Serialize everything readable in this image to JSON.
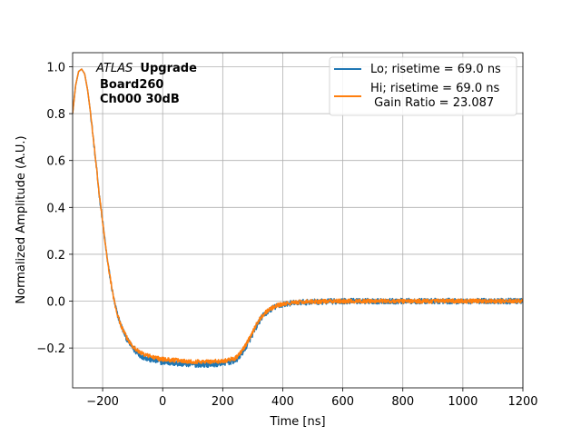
{
  "chart_data": {
    "type": "line",
    "xlabel": "Time [ns]",
    "ylabel": "Normalized Amplitude (A.U.)",
    "xlim": [
      -300,
      1200
    ],
    "ylim": [
      -0.37,
      1.06
    ],
    "x_ticks": [
      -200,
      0,
      200,
      400,
      600,
      800,
      1000,
      1200
    ],
    "x_tick_labels": [
      "−200",
      "0",
      "200",
      "400",
      "600",
      "800",
      "1000",
      "1200"
    ],
    "y_ticks": [
      -0.2,
      0.0,
      0.2,
      0.4,
      0.6,
      0.8,
      1.0
    ],
    "y_tick_labels": [
      "−0.2",
      "0.0",
      "0.2",
      "0.4",
      "0.6",
      "0.8",
      "1.0"
    ],
    "grid": true,
    "legend_position": "top-right",
    "annotation": {
      "italic": "ATLAS",
      "bold": "Upgrade",
      "line2": "Board260",
      "line3": "Ch000 30dB"
    },
    "x": [
      -300,
      -290,
      -280,
      -270,
      -260,
      -250,
      -240,
      -230,
      -220,
      -210,
      -200,
      -190,
      -180,
      -170,
      -160,
      -150,
      -140,
      -130,
      -120,
      -110,
      -100,
      -90,
      -80,
      -70,
      -60,
      -50,
      -40,
      -30,
      -20,
      -10,
      0,
      20,
      40,
      60,
      80,
      100,
      120,
      140,
      160,
      180,
      200,
      220,
      240,
      250,
      260,
      270,
      280,
      290,
      300,
      310,
      320,
      330,
      340,
      350,
      360,
      370,
      380,
      390,
      400,
      420,
      440,
      460,
      480,
      500,
      550,
      600,
      650,
      700,
      750,
      800,
      850,
      900,
      950,
      1000,
      1050,
      1100,
      1150,
      1200
    ],
    "series": [
      {
        "name": "Lo; risetime = 69.0 ns",
        "color": "#1f77b4",
        "noise": 0.012,
        "values": [
          0.8,
          0.92,
          0.98,
          0.99,
          0.97,
          0.9,
          0.8,
          0.68,
          0.56,
          0.44,
          0.34,
          0.23,
          0.14,
          0.06,
          -0.01,
          -0.06,
          -0.1,
          -0.13,
          -0.16,
          -0.18,
          -0.2,
          -0.215,
          -0.225,
          -0.235,
          -0.24,
          -0.245,
          -0.25,
          -0.252,
          -0.255,
          -0.258,
          -0.26,
          -0.262,
          -0.265,
          -0.267,
          -0.268,
          -0.27,
          -0.27,
          -0.27,
          -0.27,
          -0.268,
          -0.265,
          -0.26,
          -0.255,
          -0.245,
          -0.23,
          -0.21,
          -0.19,
          -0.165,
          -0.14,
          -0.115,
          -0.09,
          -0.07,
          -0.055,
          -0.045,
          -0.035,
          -0.028,
          -0.022,
          -0.018,
          -0.015,
          -0.01,
          -0.007,
          -0.005,
          -0.004,
          -0.003,
          -0.002,
          0.0,
          0.0,
          0.0,
          0.0,
          0.0,
          0.0,
          0.0,
          0.0,
          0.0,
          0.0,
          0.0,
          0.0,
          0.0
        ]
      },
      {
        "name": "Hi; risetime = 69.0 ns\n Gain Ratio = 23.087",
        "color": "#ff7f0e",
        "noise": 0.009,
        "values": [
          0.8,
          0.92,
          0.98,
          0.99,
          0.97,
          0.9,
          0.8,
          0.68,
          0.56,
          0.44,
          0.34,
          0.23,
          0.14,
          0.06,
          -0.01,
          -0.06,
          -0.1,
          -0.13,
          -0.155,
          -0.175,
          -0.19,
          -0.205,
          -0.215,
          -0.222,
          -0.228,
          -0.232,
          -0.236,
          -0.24,
          -0.243,
          -0.246,
          -0.248,
          -0.25,
          -0.252,
          -0.254,
          -0.256,
          -0.258,
          -0.258,
          -0.258,
          -0.258,
          -0.257,
          -0.255,
          -0.25,
          -0.245,
          -0.235,
          -0.22,
          -0.2,
          -0.18,
          -0.155,
          -0.13,
          -0.105,
          -0.083,
          -0.065,
          -0.05,
          -0.04,
          -0.032,
          -0.025,
          -0.02,
          -0.016,
          -0.013,
          -0.009,
          -0.006,
          -0.004,
          -0.003,
          -0.002,
          -0.001,
          0.0,
          0.0,
          0.0,
          0.0,
          0.0,
          0.0,
          0.0,
          0.0,
          0.0,
          0.0,
          0.0,
          0.0,
          0.0
        ]
      }
    ]
  }
}
